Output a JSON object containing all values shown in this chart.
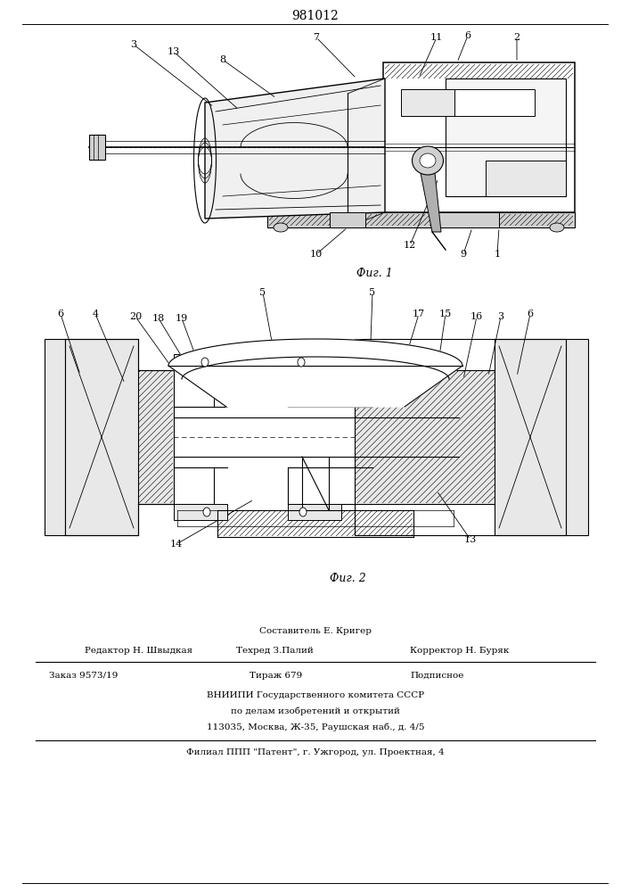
{
  "patent_number": "981012",
  "fig1_caption": "Фиг. 1",
  "fig2_caption": "Фиг. 2",
  "footer_line1": "Составитель Е. Кригер",
  "footer_line2_left": "Редактор Н. Швыдкая",
  "footer_line2_mid": "Техред З.Палий",
  "footer_line2_right": "Корректор Н. Буряк",
  "footer_line3_left": "Заказ 9573/19",
  "footer_line3_mid": "Тираж 679",
  "footer_line3_right": "Подписное",
  "footer_line4": "ВНИИПИ Государственного комитета СССР",
  "footer_line5": "по делам изобретений и открытий",
  "footer_line6": "113035, Москва, Ж-35, Раушская наб., д. 4/5",
  "footer_line7": "Филиал ППП \"Патент\", г. Ужгород, ул. Проектная, 4",
  "bg_color": "#ffffff"
}
